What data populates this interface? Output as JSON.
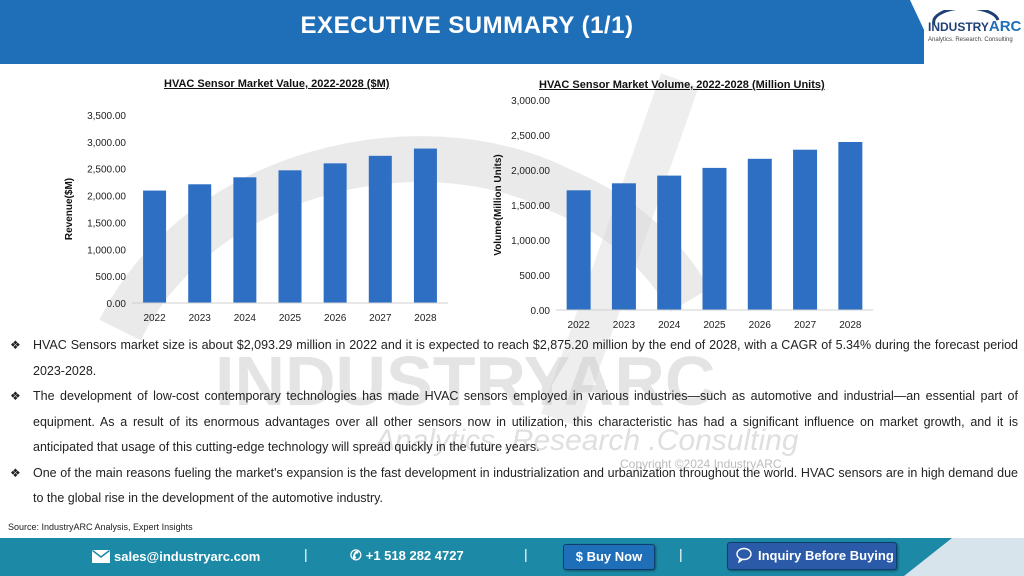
{
  "header": {
    "title": "EXECUTIVE SUMMARY (1/1)"
  },
  "logo": {
    "brand_a": "INDUSTRY",
    "brand_b": "ARC",
    "tagline": "Analytics. Research. Consulting"
  },
  "watermark": {
    "line1": "INDUSTRYARC",
    "line2": "Analytics .Research .Consulting",
    "copyright": "Copyright ©2024 IndustryARC"
  },
  "chart_data": [
    {
      "type": "bar",
      "title": "HVAC Sensor Market Value, 2022-2028 ($M)",
      "ylabel": "Revenue($M)",
      "xlabel": "",
      "categories": [
        "2022",
        "2023",
        "2024",
        "2025",
        "2026",
        "2027",
        "2028"
      ],
      "values": [
        2093.29,
        2210,
        2340,
        2470,
        2600,
        2740,
        2875.2
      ],
      "ylim": [
        0,
        3500
      ],
      "yticks": [
        "0.00",
        "500.00",
        "1,000.00",
        "1,500.00",
        "2,000.00",
        "2,500.00",
        "3,000.00",
        "3,500.00"
      ],
      "color": "#2e6fc4"
    },
    {
      "type": "bar",
      "title": "HVAC Sensor Market Volume, 2022-2028 (Million Units)",
      "ylabel": "Volume(Million Units)",
      "xlabel": "",
      "categories": [
        "2022",
        "2023",
        "2024",
        "2025",
        "2026",
        "2027",
        "2028"
      ],
      "values": [
        1710,
        1810,
        1920,
        2030,
        2160,
        2290,
        2400
      ],
      "ylim": [
        0,
        3000
      ],
      "yticks": [
        "0.00",
        "500.00",
        "1,000.00",
        "1,500.00",
        "2,000.00",
        "2,500.00",
        "3,000.00"
      ],
      "color": "#2e6fc4"
    }
  ],
  "bullets": [
    "HVAC Sensors market size is about $2,093.29 million in 2022 and it is expected to reach $2,875.20 million by the end of 2028, with a CAGR of 5.34% during the forecast period 2023-2028.",
    "The development of low-cost contemporary technologies has made HVAC sensors employed in various industries—such as automotive and industrial—an essential part of equipment. As a result of its enormous advantages over all other sensors now in utilization, this characteristic has had a significant influence on market growth, and it is anticipated that usage of this cutting-edge technology will spread quickly in the future years.",
    "One of the main reasons fueling the market's expansion is the fast development in industrialization and urbanization throughout the world. HVAC sensors are in high demand due to the global rise in the development of the automotive industry."
  ],
  "bullet_mark": "❖",
  "source": "Source: IndustryARC Analysis, Expert Insights",
  "footer": {
    "email": "sales@industryarc.com",
    "phone": "+1 518 282 4727",
    "buy_label": "$ Buy Now",
    "inquiry_label": "Inquiry Before Buying",
    "separator": "|"
  }
}
